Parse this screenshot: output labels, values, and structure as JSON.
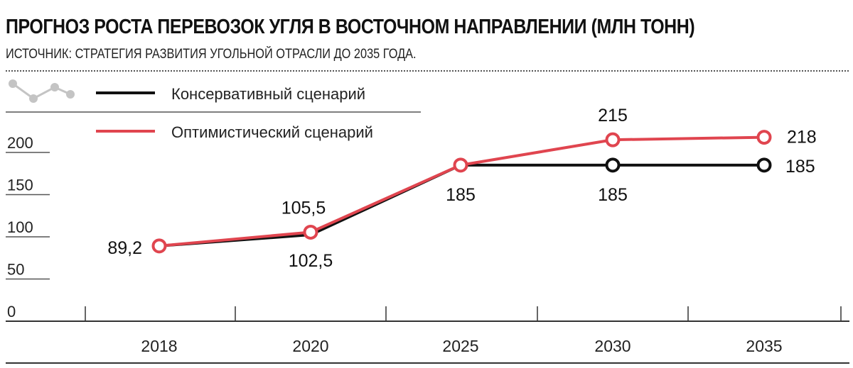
{
  "header": {
    "title": "ПРОГНОЗ РОСТА ПЕРЕВОЗОК УГЛЯ В ВОСТОЧНОМ НАПРАВЛЕНИИ (МЛН ТОНН)",
    "subtitle": "ИСТОЧНИК: СТРАТЕГИЯ РАЗВИТИЯ УГОЛЬНОЙ ОТРАСЛИ ДО 2035 ГОДА."
  },
  "legend": {
    "icon": "line-chart-icon",
    "items": [
      {
        "label": "Консервативный сценарий",
        "color": "#111111"
      },
      {
        "label": "Оптимистический сценарий",
        "color": "#e0454f"
      }
    ]
  },
  "chart_data": {
    "type": "line",
    "title": "ПРОГНОЗ РОСТА ПЕРЕВОЗОК УГЛЯ В ВОСТОЧНОМ НАПРАВЛЕНИИ (МЛН ТОНН)",
    "subtitle": "ИСТОЧНИК: СТРАТЕГИЯ РАЗВИТИЯ УГОЛЬНОЙ ОТРАСЛИ ДО 2035 ГОДА.",
    "categories": [
      "2018",
      "2020",
      "2025",
      "2030",
      "2035"
    ],
    "yticks": [
      "0",
      "50",
      "100",
      "150",
      "200"
    ],
    "ylim": [
      0,
      220
    ],
    "grid": false,
    "legend_position": "top-left",
    "series": [
      {
        "name": "Консервативный сценарий",
        "color": "#111111",
        "values": [
          89.2,
          102.5,
          185,
          185,
          185
        ],
        "labels": [
          "",
          "102,5",
          "",
          "185",
          "185"
        ]
      },
      {
        "name": "Оптимистический сценарий",
        "color": "#e0454f",
        "values": [
          89.2,
          105.5,
          185,
          215,
          218
        ],
        "labels": [
          "89,2",
          "105,5",
          "185",
          "215",
          "218"
        ]
      }
    ]
  }
}
